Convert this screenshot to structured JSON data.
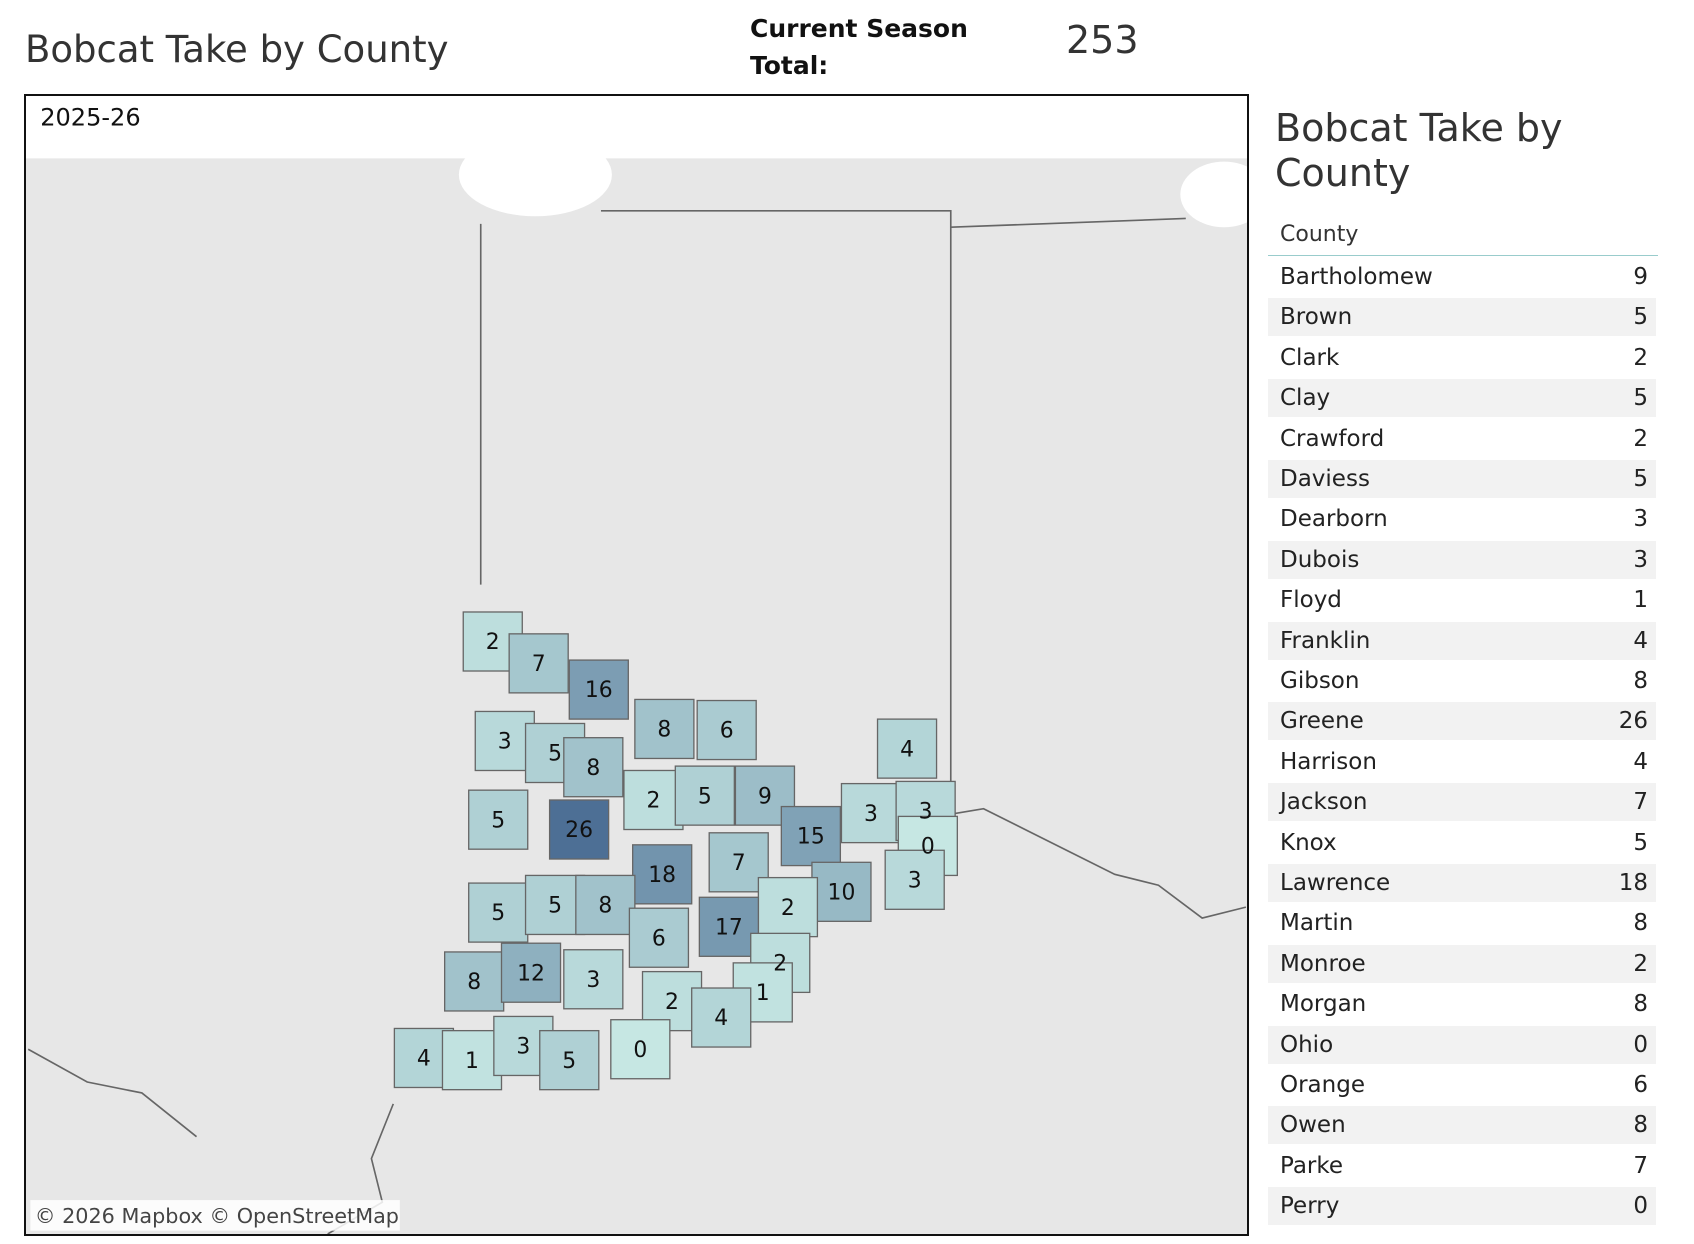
{
  "header": {
    "title": "Bobcat Take by County",
    "total_label": "Current Season Total:",
    "total_value": 253
  },
  "map": {
    "season": "2025-26",
    "attribution": "© 2026 Mapbox © OpenStreetMap",
    "color_scale": [
      "#c6e7e3",
      "#4d6f95"
    ],
    "county_values": [
      2,
      7,
      16,
      3,
      5,
      8,
      8,
      6,
      4,
      2,
      5,
      9,
      5,
      26,
      15,
      3,
      3,
      0,
      7,
      18,
      10,
      3,
      5,
      5,
      8,
      2,
      17,
      6,
      2,
      8,
      12,
      3,
      1,
      2,
      4,
      4,
      1,
      3,
      5,
      0
    ]
  },
  "table": {
    "title": "Bobcat Take by County",
    "header": "County",
    "rows": [
      [
        "Bartholomew",
        9
      ],
      [
        "Brown",
        5
      ],
      [
        "Clark",
        2
      ],
      [
        "Clay",
        5
      ],
      [
        "Crawford",
        2
      ],
      [
        "Daviess",
        5
      ],
      [
        "Dearborn",
        3
      ],
      [
        "Dubois",
        3
      ],
      [
        "Floyd",
        1
      ],
      [
        "Franklin",
        4
      ],
      [
        "Gibson",
        8
      ],
      [
        "Greene",
        26
      ],
      [
        "Harrison",
        4
      ],
      [
        "Jackson",
        7
      ],
      [
        "Knox",
        5
      ],
      [
        "Lawrence",
        18
      ],
      [
        "Martin",
        8
      ],
      [
        "Monroe",
        2
      ],
      [
        "Morgan",
        8
      ],
      [
        "Ohio",
        0
      ],
      [
        "Orange",
        6
      ],
      [
        "Owen",
        8
      ],
      [
        "Parke",
        7
      ],
      [
        "Perry",
        0
      ]
    ]
  }
}
